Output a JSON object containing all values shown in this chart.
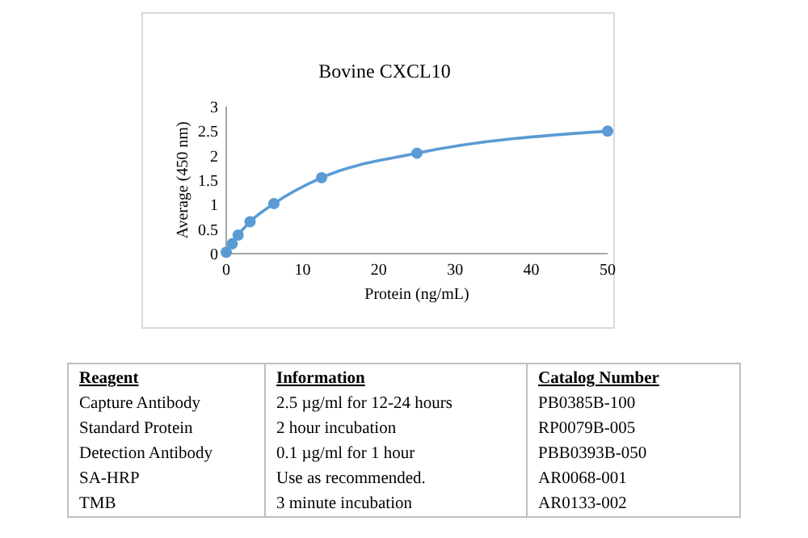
{
  "chart_data": {
    "type": "line",
    "title": "Bovine CXCL10",
    "xlabel": "Protein (ng/mL)",
    "ylabel": "Average (450 nm)",
    "x": [
      0,
      0.78,
      1.56,
      3.125,
      6.25,
      12.5,
      25,
      50
    ],
    "series": [
      {
        "color": "#5b9bd5",
        "values": [
          0.03,
          0.2,
          0.38,
          0.65,
          1.02,
          1.55,
          2.05,
          2.5
        ]
      }
    ],
    "marker": "circle",
    "xlim": [
      0,
      50
    ],
    "xticks": [
      0,
      10,
      20,
      30,
      40,
      50
    ],
    "ylim": [
      0,
      3
    ],
    "yticks": [
      0,
      0.5,
      1,
      1.5,
      2,
      2.5,
      3
    ],
    "annotations": [
      "Reagent",
      "Information",
      "Catalog Number",
      "Capture Antibody",
      "2.5 µg/ml for 12-24 hours",
      "PB0385B-100",
      "Standard Protein",
      "2 hour incubation",
      "RP0079B-005",
      "Detection Antibody",
      "0.1 µg/ml for 1 hour",
      "PBB0393B-050",
      "SA-HRP",
      "Use as recommended.",
      "AR0068-001",
      "TMB",
      "3 minute incubation",
      "AR0133-002"
    ]
  }
}
